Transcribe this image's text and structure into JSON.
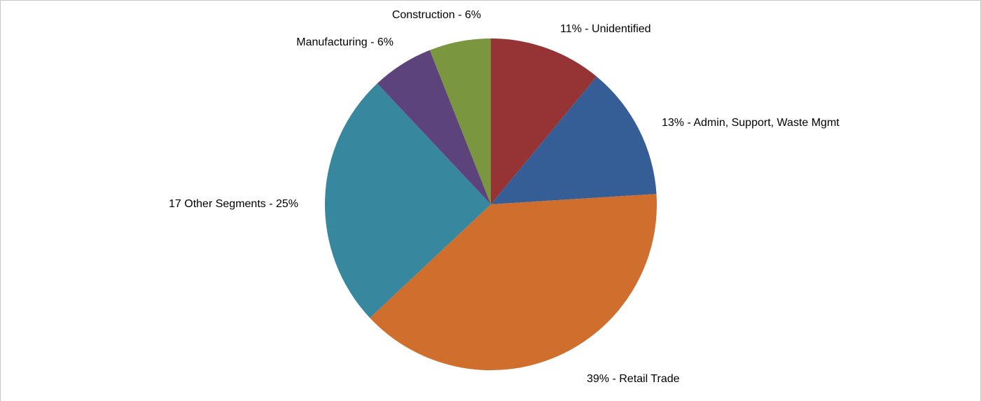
{
  "chart_data": {
    "type": "pie",
    "values": [
      11,
      13,
      39,
      25,
      6,
      6
    ],
    "value_labels": [
      "11% - Unidentified",
      "13% - Admin, Support, Waste Mgmt",
      "39% - Retail Trade",
      "17 Other Segments - 25%",
      "Manufacturing - 6%",
      "Construction - 6%"
    ],
    "colors": [
      "#963334",
      "#355e96",
      "#d06e2d",
      "#37879e",
      "#5c437c",
      "#7a963e"
    ]
  }
}
